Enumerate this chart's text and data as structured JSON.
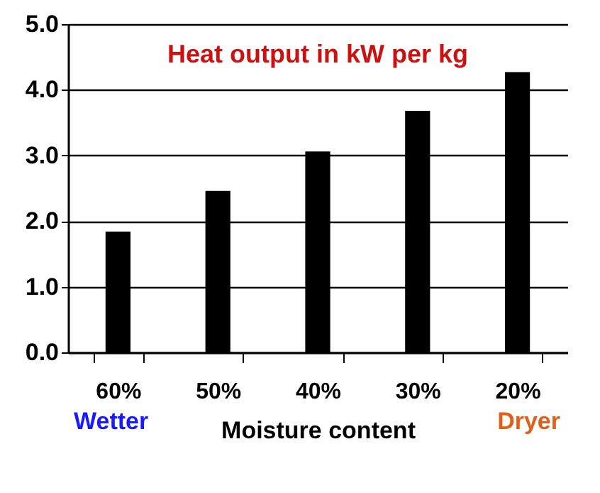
{
  "chart_data": {
    "type": "bar",
    "title": "Heat output in kW per kg",
    "xlabel": "Moisture content",
    "annotations": [
      "Wetter",
      "Dryer"
    ],
    "categories": [
      "60%",
      "50%",
      "40%",
      "30%",
      "20%"
    ],
    "values": [
      1.84,
      2.46,
      3.06,
      3.68,
      4.27
    ],
    "color": "#000000",
    "ylim": [
      0,
      5
    ],
    "yticks": [
      {
        "value": 0,
        "label": "0.0"
      },
      {
        "value": 1,
        "label": "1.0"
      },
      {
        "value": 2,
        "label": "2.0"
      },
      {
        "value": 3,
        "label": "3.0"
      },
      {
        "value": 4,
        "label": "4.0"
      },
      {
        "value": 5,
        "label": "5.0"
      }
    ],
    "grid": "y"
  }
}
